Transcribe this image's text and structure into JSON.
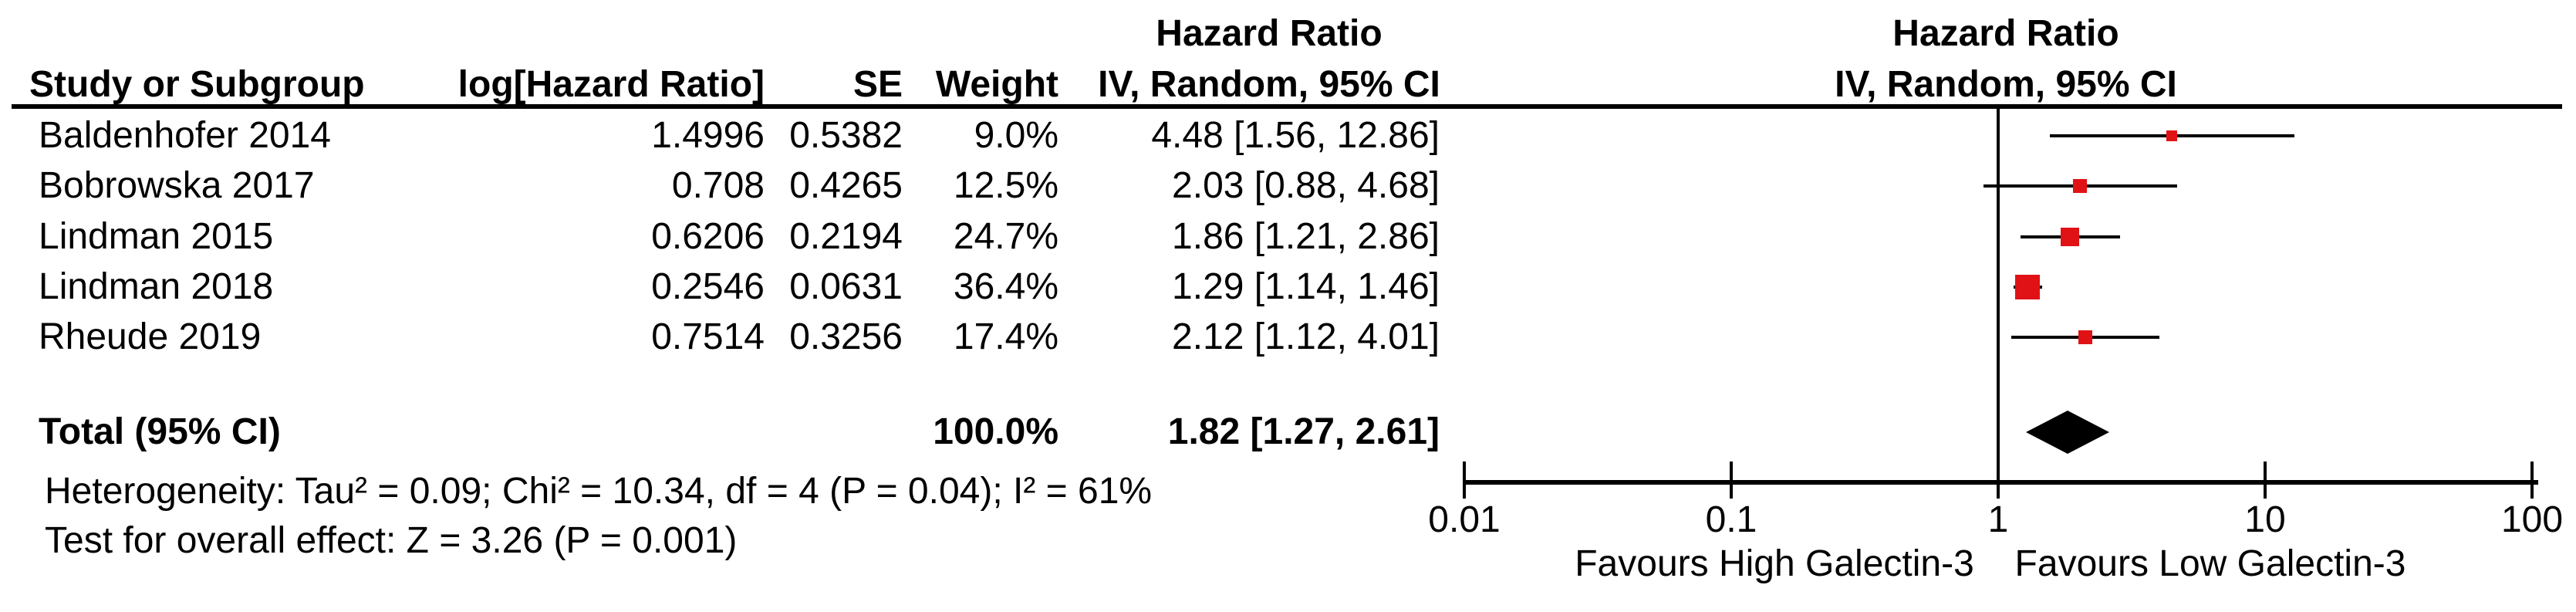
{
  "table": {
    "headers": {
      "study": "Study or Subgroup",
      "loghr": "log[Hazard Ratio]",
      "se": "SE",
      "weight": "Weight",
      "hr_col_line1": "Hazard Ratio",
      "hr_col_line2": "IV, Random, 95% CI",
      "plot_col_line1": "Hazard Ratio",
      "plot_col_line2": "IV, Random, 95% CI"
    },
    "rows": [
      {
        "name": "Baldenhofer 2014",
        "loghr": "1.4996",
        "se": "0.5382",
        "weight": "9.0%",
        "ci": "4.48 [1.56, 12.86]"
      },
      {
        "name": "Bobrowska 2017",
        "loghr": "0.708",
        "se": "0.4265",
        "weight": "12.5%",
        "ci": "2.03 [0.88, 4.68]"
      },
      {
        "name": "Lindman 2015",
        "loghr": "0.6206",
        "se": "0.2194",
        "weight": "24.7%",
        "ci": "1.86 [1.21, 2.86]"
      },
      {
        "name": "Lindman 2018",
        "loghr": "0.2546",
        "se": "0.0631",
        "weight": "36.4%",
        "ci": "1.29 [1.14, 1.46]"
      },
      {
        "name": "Rheude 2019",
        "loghr": "0.7514",
        "se": "0.3256",
        "weight": "17.4%",
        "ci": "2.12 [1.12, 4.01]"
      }
    ],
    "total": {
      "label": "Total (95% CI)",
      "weight": "100.0%",
      "ci": "1.82 [1.27, 2.61]"
    },
    "footnotes": {
      "heterogeneity": "Heterogeneity: Tau² = 0.09; Chi² = 10.34, df = 4 (P = 0.04); I² = 61%",
      "overall_effect": "Test for overall effect: Z = 3.26 (P = 0.001)"
    }
  },
  "plot": {
    "tick_labels": [
      "0.01",
      "0.1",
      "1",
      "10",
      "100"
    ],
    "favours_left": "Favours High Galectin-3",
    "favours_right": "Favours Low Galectin-3",
    "marker_color": "#e01216",
    "diamond_color": "#000000",
    "line_color": "#000000"
  },
  "chart_data": {
    "type": "forest",
    "title": "Hazard Ratio",
    "model": "IV, Random, 95% CI",
    "x_scale": "log10",
    "x_range": [
      0.01,
      100
    ],
    "x_ticks": [
      0.01,
      0.1,
      1,
      10,
      100
    ],
    "null_line": 1,
    "studies": [
      {
        "label": "Baldenhofer 2014",
        "hr": 4.48,
        "ci_low": 1.56,
        "ci_high": 12.86,
        "weight_pct": 9.0,
        "marker_size": 14
      },
      {
        "label": "Bobrowska 2017",
        "hr": 2.03,
        "ci_low": 0.88,
        "ci_high": 4.68,
        "weight_pct": 12.5,
        "marker_size": 18
      },
      {
        "label": "Lindman 2015",
        "hr": 1.86,
        "ci_low": 1.21,
        "ci_high": 2.86,
        "weight_pct": 24.7,
        "marker_size": 24
      },
      {
        "label": "Lindman 2018",
        "hr": 1.29,
        "ci_low": 1.14,
        "ci_high": 1.46,
        "weight_pct": 36.4,
        "marker_size": 32
      },
      {
        "label": "Rheude 2019",
        "hr": 2.12,
        "ci_low": 1.12,
        "ci_high": 4.01,
        "weight_pct": 17.4,
        "marker_size": 18
      }
    ],
    "total": {
      "label": "Total (95% CI)",
      "hr": 1.82,
      "ci_low": 1.27,
      "ci_high": 2.61,
      "weight_pct": 100.0
    },
    "heterogeneity": {
      "tau2": 0.09,
      "chi2": 10.34,
      "df": 4,
      "p": 0.04,
      "i2_pct": 61
    },
    "overall_effect": {
      "z": 3.26,
      "p": 0.001
    }
  }
}
